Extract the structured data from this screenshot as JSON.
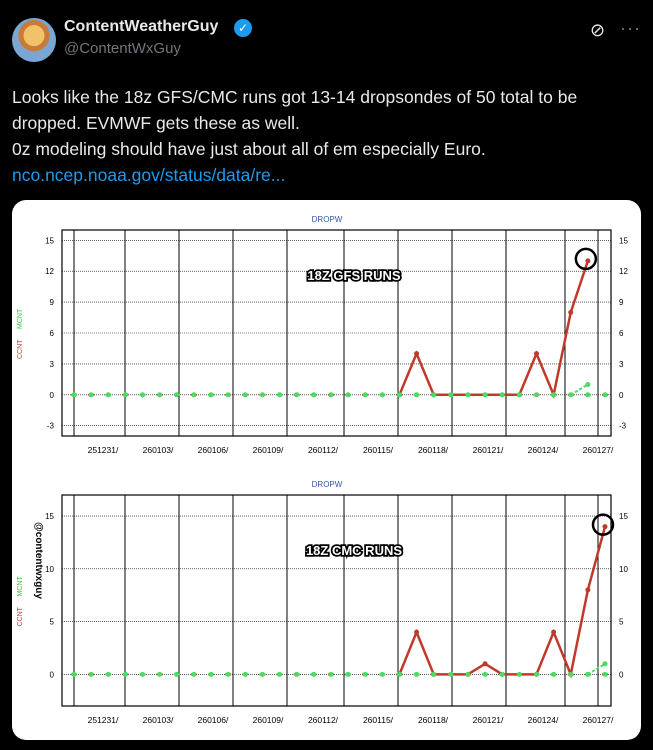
{
  "author": {
    "name": "ContentWeatherGuy",
    "handle": "@ContentWxGuy",
    "verified_icon": "check-badge-icon"
  },
  "post": {
    "line1": "Looks like the 18z GFS/CMC runs got 13-14 dropsondes of 50 total to be dropped. EVMWF gets these as well.",
    "line2": "0z modeling should have just about all of em especially Euro.",
    "link": "nco.ncep.noaa.gov/status/data/re..."
  },
  "chart_data": [
    {
      "type": "line",
      "title": "DROPW",
      "overlay": "18Z GFS RUNS",
      "ylabels": [
        "CCNT",
        "MCNT"
      ],
      "yticks": [
        -3,
        0,
        3,
        6,
        9,
        12,
        15
      ],
      "ylim": [
        -4,
        16
      ],
      "categories": [
        "251231/",
        "260103/",
        "260106/",
        "260109/",
        "260112/",
        "260115/",
        "260118/",
        "260121/",
        "260124/",
        "260127/"
      ],
      "series": [
        {
          "name": "CCNT",
          "color": "#c0392b",
          "x": [
            0,
            1,
            2,
            3,
            4,
            5,
            6,
            7,
            8,
            9,
            10,
            11,
            12,
            13,
            14,
            15,
            16,
            17,
            18,
            19,
            20,
            21,
            22,
            23,
            24,
            25,
            26,
            27,
            28,
            29
          ],
          "values": [
            0,
            0,
            0,
            0,
            0,
            0,
            0,
            0,
            0,
            0,
            0,
            0,
            0,
            0,
            0,
            0,
            0,
            0,
            0,
            0,
            4,
            0,
            0,
            0,
            0,
            0,
            0,
            0,
            0,
            0
          ]
        },
        {
          "name": "MCNT",
          "color": "#2ecc40",
          "x": [
            0,
            1,
            2,
            3,
            4,
            5,
            6,
            7,
            8,
            9,
            10,
            11,
            12,
            13,
            14,
            15,
            16,
            17,
            18,
            19,
            20,
            21,
            22,
            23,
            24,
            25,
            26,
            27,
            28,
            29
          ],
          "values": [
            0,
            0,
            0,
            0,
            0,
            0,
            0,
            0,
            0,
            0,
            0,
            0,
            0,
            0,
            0,
            0,
            0,
            0,
            0,
            0,
            0,
            0,
            0,
            0,
            0,
            0,
            0,
            0,
            0,
            0
          ]
        }
      ],
      "tail_ccnt": [
        [
          26,
          0
        ],
        [
          27,
          4
        ],
        [
          28,
          0
        ],
        [
          29,
          8
        ],
        [
          30,
          13
        ]
      ],
      "tail_mcnt": [
        [
          29,
          0
        ],
        [
          30,
          1
        ]
      ],
      "circled_value": 13
    },
    {
      "type": "line",
      "title": "DROPW",
      "overlay": "18Z CMC RUNS",
      "ylabels": [
        "CCNT",
        "MCNT"
      ],
      "yticks": [
        0,
        5,
        10,
        15
      ],
      "ylim": [
        -3,
        17
      ],
      "categories": [
        "251231/",
        "260103/",
        "260106/",
        "260109/",
        "260112/",
        "260115/",
        "260118/",
        "260121/",
        "260124/",
        "260127/"
      ],
      "spikes_ccnt": [
        [
          19,
          0
        ],
        [
          20,
          4
        ],
        [
          21,
          0
        ],
        [
          23,
          0
        ],
        [
          24,
          1
        ],
        [
          25,
          0
        ],
        [
          27,
          0
        ],
        [
          28,
          4
        ],
        [
          29,
          0
        ],
        [
          30,
          8
        ],
        [
          31,
          14
        ]
      ],
      "tail_mcnt": [
        [
          30,
          0
        ],
        [
          31,
          1
        ]
      ],
      "circled_value": 14
    }
  ],
  "watermark": "@contentwxguy"
}
